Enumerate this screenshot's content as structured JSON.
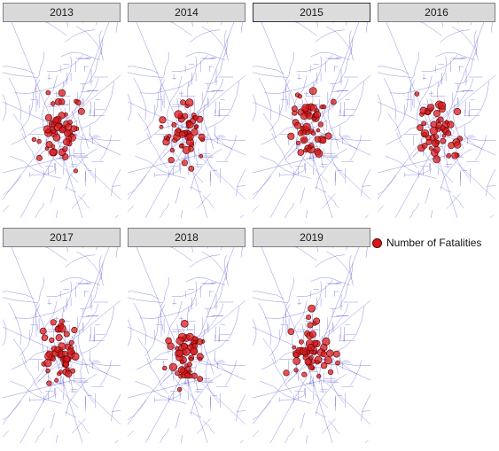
{
  "panels": [
    {
      "year": "2013"
    },
    {
      "year": "2014"
    },
    {
      "year": "2015"
    },
    {
      "year": "2016"
    },
    {
      "year": "2017"
    },
    {
      "year": "2018"
    },
    {
      "year": "2019"
    }
  ],
  "legend": {
    "label": "Number of Fatalities",
    "color": "#d7191c"
  },
  "colors": {
    "roads": "#6a6ad8",
    "points_fill": "#d7191c",
    "points_stroke": "#5a0000",
    "strip_bg": "#d9d9d9"
  }
}
